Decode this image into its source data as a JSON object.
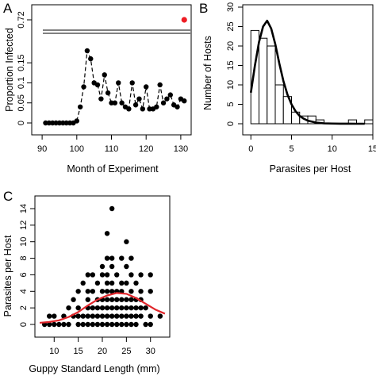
{
  "panels": {
    "A": {
      "letter": "A"
    },
    "B": {
      "letter": "B"
    },
    "C": {
      "letter": "C"
    }
  },
  "chart_data": [
    {
      "id": "A",
      "type": "line",
      "xlabel": "Month of Experiment",
      "ylabel": "Proportion Infected",
      "xlim": [
        87,
        133
      ],
      "xticks": [
        90,
        100,
        110,
        120,
        130
      ],
      "yticks": [
        0,
        0.05,
        0.1,
        0.15,
        0.72
      ],
      "ytick_labels": [
        "0",
        "0.05",
        "0.1",
        "0.15",
        "0.72"
      ],
      "axis_break": true,
      "series": [
        {
          "x": [
            91,
            92,
            93,
            94,
            95,
            96,
            97,
            98,
            99,
            100,
            101,
            102,
            103,
            104,
            105,
            106,
            107,
            108,
            109,
            110,
            111,
            112,
            113,
            114,
            115,
            116,
            117,
            118,
            119,
            120,
            121,
            122,
            123,
            124,
            125,
            126,
            127,
            128,
            129,
            130,
            131
          ],
          "y": [
            0,
            0,
            0,
            0,
            0,
            0,
            0,
            0,
            0,
            0.005,
            0.04,
            0.09,
            0.18,
            0.16,
            0.1,
            0.095,
            0.06,
            0.12,
            0.075,
            0.05,
            0.05,
            0.1,
            0.05,
            0.04,
            0.035,
            0.1,
            0.045,
            0.06,
            0.035,
            0.09,
            0.035,
            0.035,
            0.04,
            0.095,
            0.05,
            0.06,
            0.07,
            0.045,
            0.04,
            0.06,
            0.055
          ]
        }
      ],
      "highlight_point": {
        "x": 131,
        "y": 0.72,
        "color": "#ee1c24"
      }
    },
    {
      "id": "B",
      "type": "bar",
      "xlabel": "Parasites per Host",
      "ylabel": "Number of Hosts",
      "xlim": [
        -1,
        15
      ],
      "ylim": [
        0,
        30
      ],
      "xticks": [
        0,
        5,
        10,
        15
      ],
      "yticks": [
        0,
        5,
        10,
        15,
        20,
        25,
        30
      ],
      "bins": [
        [
          0,
          1
        ],
        [
          1,
          2
        ],
        [
          2,
          3
        ],
        [
          3,
          4
        ],
        [
          4,
          5
        ],
        [
          5,
          6
        ],
        [
          6,
          7
        ],
        [
          7,
          8
        ],
        [
          8,
          9
        ],
        [
          9,
          10
        ],
        [
          10,
          11
        ],
        [
          11,
          12
        ],
        [
          12,
          13
        ],
        [
          13,
          14
        ],
        [
          14,
          15
        ]
      ],
      "values": [
        24,
        22,
        20,
        10,
        7,
        3,
        2,
        2,
        1,
        0,
        0,
        0,
        1,
        0,
        1
      ],
      "fit_line": {
        "x": [
          0,
          0.5,
          1,
          1.5,
          2,
          2.5,
          3,
          3.5,
          4,
          4.5,
          5,
          5.5,
          6,
          6.5,
          7,
          8,
          9,
          10,
          11,
          12,
          13,
          14
        ],
        "y": [
          8,
          15,
          21,
          25,
          26.5,
          24.5,
          20.5,
          15.5,
          11,
          7.5,
          5,
          3.2,
          2,
          1.3,
          0.8,
          0.3,
          0.1,
          0.05,
          0.02,
          0.01,
          0,
          0
        ]
      }
    },
    {
      "id": "C",
      "type": "scatter",
      "xlabel": "Guppy Standard Length (mm)",
      "ylabel": "Parasites per Host",
      "xlim": [
        6,
        34
      ],
      "ylim": [
        -0.5,
        14.5
      ],
      "xticks": [
        10,
        15,
        20,
        25,
        30
      ],
      "yticks": [
        0,
        2,
        4,
        6,
        8,
        10,
        12,
        14
      ],
      "points": [
        [
          8,
          0
        ],
        [
          9,
          0
        ],
        [
          10,
          0
        ],
        [
          11,
          0
        ],
        [
          12,
          0
        ],
        [
          13,
          0
        ],
        [
          15,
          0
        ],
        [
          16,
          0
        ],
        [
          17,
          0
        ],
        [
          18,
          0
        ],
        [
          19,
          0
        ],
        [
          20,
          0
        ],
        [
          21,
          0
        ],
        [
          22,
          0
        ],
        [
          23,
          0
        ],
        [
          24,
          0
        ],
        [
          25,
          0
        ],
        [
          26,
          0
        ],
        [
          27,
          0
        ],
        [
          29,
          0
        ],
        [
          30,
          0
        ],
        [
          9,
          1
        ],
        [
          10,
          1
        ],
        [
          12,
          1
        ],
        [
          14,
          1
        ],
        [
          15,
          1
        ],
        [
          16,
          1
        ],
        [
          17,
          1
        ],
        [
          18,
          1
        ],
        [
          19,
          1
        ],
        [
          20,
          1
        ],
        [
          21,
          1
        ],
        [
          22,
          1
        ],
        [
          23,
          1
        ],
        [
          24,
          1
        ],
        [
          25,
          1
        ],
        [
          26,
          1
        ],
        [
          27,
          1
        ],
        [
          28,
          1
        ],
        [
          30,
          1
        ],
        [
          32,
          1
        ],
        [
          13,
          2
        ],
        [
          15,
          2
        ],
        [
          17,
          2
        ],
        [
          18,
          2
        ],
        [
          19,
          2
        ],
        [
          20,
          2
        ],
        [
          21,
          2
        ],
        [
          22,
          2
        ],
        [
          23,
          2
        ],
        [
          24,
          2
        ],
        [
          25,
          2
        ],
        [
          26,
          2
        ],
        [
          27,
          2
        ],
        [
          28,
          2
        ],
        [
          29,
          2
        ],
        [
          14,
          3
        ],
        [
          17,
          3
        ],
        [
          19,
          3
        ],
        [
          20,
          3
        ],
        [
          21,
          3
        ],
        [
          22,
          3
        ],
        [
          23,
          3
        ],
        [
          24,
          3
        ],
        [
          25,
          3
        ],
        [
          26,
          3
        ],
        [
          27,
          3
        ],
        [
          28,
          3
        ],
        [
          15,
          4
        ],
        [
          17,
          4
        ],
        [
          18,
          4
        ],
        [
          20,
          4
        ],
        [
          21,
          4
        ],
        [
          22,
          4
        ],
        [
          23,
          4
        ],
        [
          24,
          4
        ],
        [
          26,
          4
        ],
        [
          28,
          4
        ],
        [
          30,
          4
        ],
        [
          16,
          5
        ],
        [
          19,
          5
        ],
        [
          21,
          5
        ],
        [
          22,
          5
        ],
        [
          24,
          5
        ],
        [
          25,
          5
        ],
        [
          27,
          5
        ],
        [
          17,
          6
        ],
        [
          18,
          6
        ],
        [
          20,
          6
        ],
        [
          21,
          6
        ],
        [
          23,
          6
        ],
        [
          26,
          6
        ],
        [
          28,
          6
        ],
        [
          30,
          6
        ],
        [
          20,
          7
        ],
        [
          22,
          7
        ],
        [
          25,
          7
        ],
        [
          21,
          8
        ],
        [
          22,
          8
        ],
        [
          24,
          8
        ],
        [
          26,
          8
        ],
        [
          25,
          10
        ],
        [
          21,
          11
        ],
        [
          22,
          14
        ]
      ],
      "fit_line": {
        "x": [
          7,
          9,
          11,
          13,
          15,
          17,
          19,
          21,
          23,
          25,
          27,
          29,
          31,
          33
        ],
        "y": [
          0.2,
          0.3,
          0.5,
          0.9,
          1.5,
          2.3,
          3.0,
          3.5,
          3.8,
          3.7,
          3.2,
          2.5,
          1.8,
          1.3
        ],
        "color": "#e0262b"
      }
    }
  ]
}
